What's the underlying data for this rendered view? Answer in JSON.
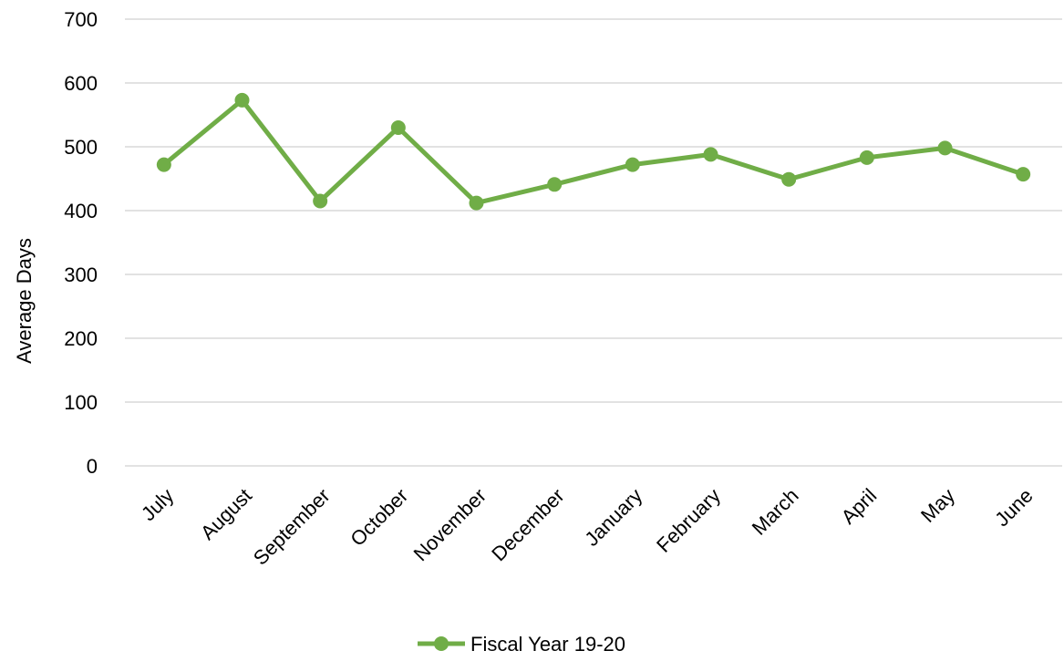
{
  "chart_data": {
    "type": "line",
    "categories": [
      "July",
      "August",
      "September",
      "October",
      "November",
      "December",
      "January",
      "February",
      "March",
      "April",
      "May",
      "June"
    ],
    "series": [
      {
        "name": "Fiscal Year 19-20",
        "values": [
          472,
          573,
          415,
          530,
          412,
          441,
          472,
          488,
          449,
          483,
          498,
          457
        ],
        "color": "#70ad47"
      }
    ],
    "title": "",
    "xlabel": "",
    "ylabel": "Average Days",
    "ylim": [
      0,
      700
    ],
    "yticks": [
      0,
      100,
      200,
      300,
      400,
      500,
      600,
      700
    ],
    "ytick_labels": [
      "0",
      "100",
      "200",
      "300",
      "400",
      "500",
      "600",
      "700"
    ],
    "grid": true,
    "legend": "bottom"
  }
}
